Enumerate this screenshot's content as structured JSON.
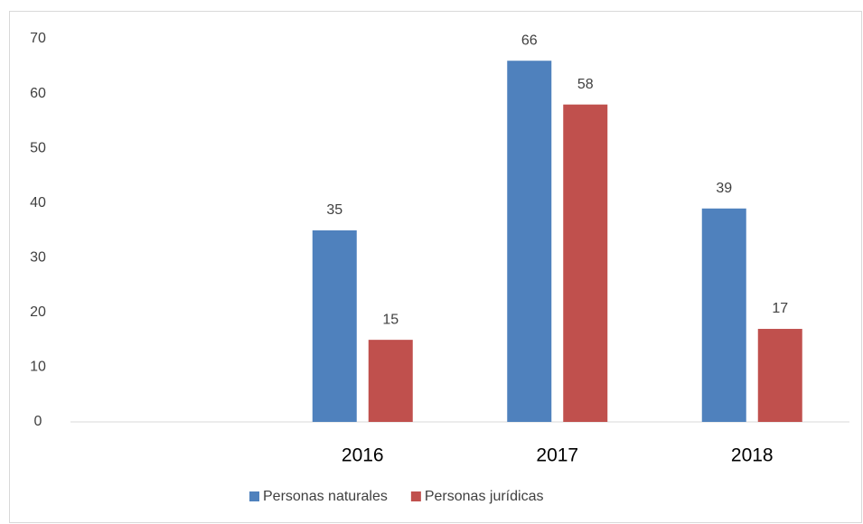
{
  "chart_data": {
    "type": "bar",
    "categories": [
      null,
      "2016",
      "2017",
      "2018"
    ],
    "series": [
      {
        "name": "Personas naturales",
        "color": "#4f81bd",
        "values": [
          null,
          35,
          66,
          39
        ]
      },
      {
        "name": "Personas jurídicas",
        "color": "#c0504d",
        "values": [
          null,
          15,
          58,
          17
        ]
      }
    ],
    "ylim": [
      0,
      70
    ],
    "yticks": [
      0,
      10,
      20,
      30,
      40,
      50,
      60,
      70
    ],
    "grid": false,
    "legend": "bottom"
  }
}
